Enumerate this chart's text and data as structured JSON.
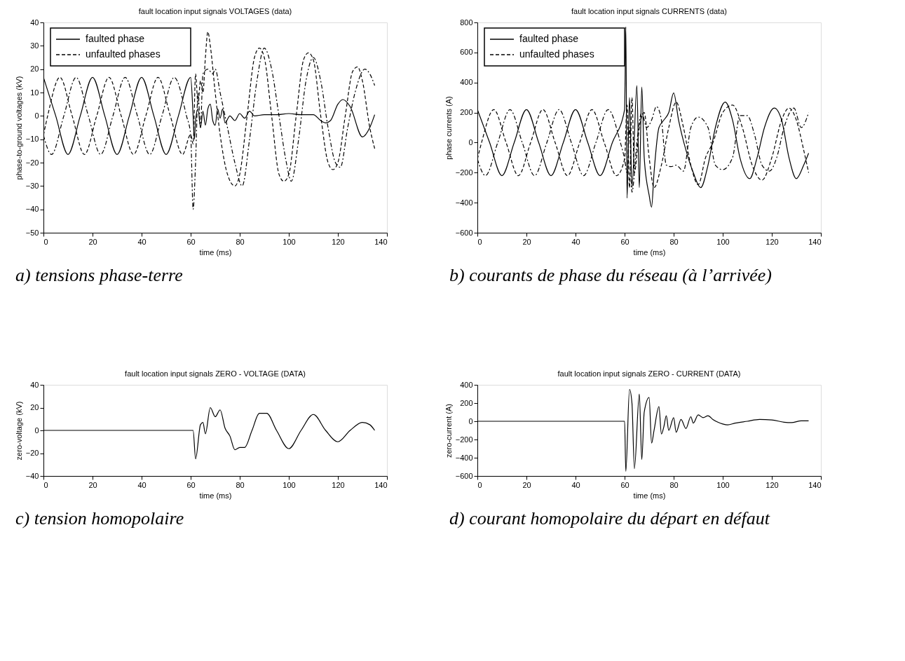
{
  "chart_data": [
    {
      "type": "line",
      "title": "fault location input signals  VOLTAGES  (data)",
      "xlabel": "time (ms)",
      "ylabel": "phase-to-ground voltages (kV)",
      "xlim": [
        0,
        140
      ],
      "ylim": [
        -50,
        40
      ],
      "xticks": [
        0,
        20,
        40,
        60,
        80,
        100,
        120,
        140
      ],
      "yticks": [
        -50,
        -40,
        -30,
        -20,
        -10,
        0,
        10,
        20,
        30,
        40
      ],
      "legend": "top left",
      "annotations": [
        "a) tensions phase-terre"
      ],
      "series": [
        {
          "name": "faulted phase",
          "color": "#000000",
          "line_style": "solid",
          "x": [
            0,
            5,
            10,
            15,
            20,
            25,
            30,
            35,
            40,
            45,
            50,
            55,
            60,
            61,
            61.5,
            62,
            63,
            64,
            65,
            66,
            67,
            68,
            69,
            70,
            71,
            72,
            73,
            74,
            76,
            78,
            80,
            82,
            84,
            86,
            90,
            95,
            100,
            105,
            110,
            113,
            115,
            117,
            120,
            122,
            125,
            130,
            133,
            135
          ],
          "values": [
            16.5,
            0,
            -16.5,
            0,
            16.5,
            0,
            -16.5,
            0,
            16.5,
            0,
            -16.5,
            0,
            16.5,
            0,
            -10,
            -2,
            3,
            -5,
            2,
            -4,
            3,
            5,
            -2,
            -4,
            3,
            -1,
            3,
            -3,
            0,
            -2,
            1,
            -1,
            2,
            0,
            0.5,
            0.5,
            1,
            0.5,
            0.5,
            -2,
            -3,
            -2,
            5,
            7,
            4,
            -9,
            -5,
            0.5
          ]
        },
        {
          "name": "unfaulted phases",
          "color": "#000000",
          "line_style": "dashed",
          "x": [
            0,
            1.7,
            6.7,
            11.7,
            16.7,
            21.7,
            26.7,
            31.7,
            36.7,
            41.7,
            46.7,
            51.7,
            56.7,
            60,
            61,
            62,
            63,
            64,
            65,
            66,
            67,
            68,
            70,
            72,
            75,
            78,
            80,
            83,
            86,
            88,
            90,
            93,
            96,
            98,
            100,
            103,
            106,
            108,
            110,
            113,
            116,
            118,
            120,
            123,
            126,
            128,
            130,
            133,
            135
          ],
          "values": [
            -8.3,
            0,
            16.5,
            0,
            -16.5,
            0,
            16.5,
            0,
            -16.5,
            0,
            16.5,
            0,
            -16.5,
            -8,
            -12,
            18,
            5,
            15,
            10,
            25,
            36,
            30,
            10,
            -8,
            -25,
            -30,
            -25,
            0,
            25,
            29,
            25,
            0,
            -25,
            -28,
            -25,
            0,
            24,
            27,
            24,
            0,
            -20,
            -23,
            -20,
            0,
            19,
            21,
            15,
            -5,
            -14
          ]
        },
        {
          "name": null,
          "color": "#000000",
          "line_style": "dashdot",
          "x": [
            0,
            3.3,
            8.3,
            13.3,
            18.3,
            23.3,
            28.3,
            33.3,
            38.3,
            43.3,
            48.3,
            53.3,
            58.3,
            60,
            61,
            62,
            63,
            64,
            65,
            67,
            69,
            70,
            72,
            75,
            78,
            81,
            84,
            87,
            90,
            93,
            96,
            99,
            101,
            104,
            107,
            110,
            113,
            116,
            119,
            121,
            124,
            127,
            131,
            133,
            135
          ],
          "values": [
            -8.3,
            -16.5,
            0,
            16.5,
            0,
            -16.5,
            0,
            16.5,
            0,
            -16.5,
            0,
            16.5,
            0,
            -8,
            -40,
            -20,
            10,
            -5,
            18,
            20,
            18,
            20,
            10,
            -5,
            -20,
            -30,
            -10,
            15,
            29,
            20,
            0,
            -20,
            -28,
            -10,
            15,
            25,
            15,
            -5,
            -20,
            -22,
            -5,
            10,
            20,
            18,
            13
          ]
        }
      ]
    },
    {
      "type": "line",
      "title": "fault location input signals  CURRENTS  (data)",
      "xlabel": "time (ms)",
      "ylabel": "phase currents (A)",
      "xlim": [
        0,
        140
      ],
      "ylim": [
        -600,
        800
      ],
      "xticks": [
        0,
        20,
        40,
        60,
        80,
        100,
        120,
        140
      ],
      "yticks": [
        -600,
        -400,
        -200,
        0,
        200,
        400,
        600,
        800
      ],
      "legend": "top left",
      "annotations": [
        "b) courants de phase du réseau  (à l’arrivée)"
      ],
      "series": [
        {
          "name": "faulted phase",
          "color": "#000000",
          "line_style": "solid",
          "x": [
            0,
            5,
            10,
            15,
            20,
            25,
            30,
            35,
            40,
            45,
            50,
            55,
            60,
            60.5,
            61,
            62,
            63,
            65,
            66,
            67,
            68,
            70,
            71,
            72,
            74,
            76,
            78,
            80,
            82,
            85,
            88,
            91,
            94,
            97,
            101,
            104,
            107,
            111,
            114,
            117,
            121,
            124,
            127,
            130,
            133,
            135
          ],
          "values": [
            220,
            0,
            -220,
            0,
            220,
            0,
            -220,
            0,
            220,
            0,
            -220,
            0,
            220,
            770,
            -370,
            300,
            -300,
            380,
            -300,
            370,
            -100,
            -350,
            -430,
            -200,
            100,
            150,
            200,
            330,
            150,
            -50,
            -200,
            -300,
            -150,
            100,
            270,
            150,
            -100,
            -240,
            -100,
            100,
            230,
            150,
            -100,
            -240,
            -150,
            -70
          ]
        },
        {
          "name": "unfaulted phases",
          "color": "#000000",
          "line_style": "dashed",
          "x": [
            0,
            1.7,
            6.7,
            11.7,
            16.7,
            21.7,
            26.7,
            31.7,
            36.7,
            41.7,
            46.7,
            51.7,
            56.7,
            60,
            61,
            62,
            63,
            64,
            66,
            68,
            70,
            72,
            75,
            78,
            81,
            84,
            87,
            90,
            93,
            96,
            100,
            104,
            108,
            112,
            116,
            120,
            124,
            127,
            130,
            133,
            135
          ],
          "values": [
            -110,
            0,
            220,
            0,
            -220,
            0,
            220,
            0,
            -220,
            0,
            220,
            0,
            -220,
            -110,
            250,
            -300,
            300,
            -200,
            100,
            200,
            -100,
            -300,
            -150,
            100,
            270,
            100,
            -150,
            -280,
            -100,
            0,
            200,
            250,
            100,
            -150,
            -250,
            -100,
            150,
            230,
            150,
            -50,
            -200
          ]
        },
        {
          "name": null,
          "color": "#000000",
          "line_style": "dashdot",
          "x": [
            0,
            3.3,
            8.3,
            13.3,
            18.3,
            23.3,
            28.3,
            33.3,
            38.3,
            43.3,
            48.3,
            53.3,
            58.3,
            60,
            61,
            62,
            63,
            65,
            67,
            69,
            71,
            73,
            75,
            77,
            79,
            81,
            84,
            87,
            90,
            94,
            97,
            100,
            104,
            107,
            110,
            113,
            116,
            119,
            122,
            125,
            129,
            132,
            135
          ],
          "values": [
            -110,
            -220,
            0,
            220,
            0,
            -220,
            0,
            220,
            0,
            -220,
            0,
            220,
            0,
            -110,
            -200,
            100,
            -330,
            0,
            200,
            100,
            150,
            240,
            150,
            -150,
            -160,
            -150,
            -190,
            100,
            170,
            100,
            -150,
            -180,
            -100,
            180,
            180,
            50,
            -150,
            -190,
            -100,
            100,
            230,
            100,
            200
          ]
        }
      ]
    },
    {
      "type": "line",
      "title": "fault location input signals  ZERO - VOLTAGE  (DATA)",
      "xlabel": "time (ms)",
      "ylabel": "zero-voltage (kV)",
      "xlim": [
        0,
        140
      ],
      "ylim": [
        -40,
        40
      ],
      "xticks": [
        0,
        20,
        40,
        60,
        80,
        100,
        120,
        140
      ],
      "yticks": [
        -40,
        -20,
        0,
        20,
        40
      ],
      "annotations": [
        "c) tension homopolaire"
      ],
      "series": [
        {
          "name": null,
          "color": "#000000",
          "line_style": "solid",
          "x": [
            0,
            20,
            40,
            61,
            62,
            64,
            65,
            66,
            68,
            70,
            72,
            74,
            76,
            78,
            80,
            82,
            85,
            88,
            91,
            95,
            100,
            105,
            110,
            115,
            120,
            125,
            130,
            133,
            135
          ],
          "values": [
            0,
            0,
            0,
            0,
            -25,
            5,
            7,
            -3,
            20,
            12,
            18,
            2,
            -5,
            -17,
            -15,
            -15,
            0,
            15,
            15,
            0,
            -16,
            0,
            14,
            0,
            -10,
            0,
            7,
            5,
            0
          ]
        }
      ]
    },
    {
      "type": "line",
      "title": "fault location input signals ZERO - CURRENT  (DATA)",
      "xlabel": "time (ms)",
      "ylabel": "zero-current (A)",
      "xlim": [
        0,
        140
      ],
      "ylim": [
        -600,
        400
      ],
      "xticks": [
        0,
        20,
        40,
        60,
        80,
        100,
        120,
        140
      ],
      "yticks": [
        -600,
        -400,
        -200,
        0,
        200,
        400
      ],
      "annotations": [
        "d) courant homopolaire du départ en défaut"
      ],
      "series": [
        {
          "name": null,
          "color": "#000000",
          "line_style": "solid",
          "x": [
            0,
            20,
            40,
            60,
            60.5,
            62,
            63,
            64,
            66,
            67,
            68,
            70,
            71,
            72,
            74,
            75,
            76,
            77,
            78,
            80,
            81,
            83,
            85,
            87,
            88,
            90,
            92,
            94,
            96,
            98,
            100,
            102,
            105,
            110,
            115,
            120,
            125,
            128,
            132,
            135
          ],
          "values": [
            0,
            0,
            0,
            0,
            -550,
            350,
            200,
            -520,
            300,
            -420,
            100,
            260,
            -240,
            -100,
            160,
            -140,
            -60,
            60,
            -100,
            40,
            -120,
            20,
            -80,
            50,
            -20,
            70,
            40,
            60,
            20,
            -10,
            -30,
            -40,
            -20,
            0,
            20,
            15,
            -10,
            -15,
            5,
            5
          ]
        }
      ]
    }
  ]
}
